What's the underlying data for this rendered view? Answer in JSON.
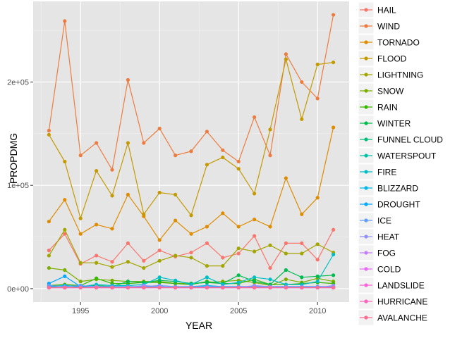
{
  "chart_data": {
    "type": "line",
    "title": "",
    "xlabel": "YEAR",
    "ylabel": "PROPDMG",
    "xlim": [
      1992,
      2012
    ],
    "ylim": [
      -13000,
      278000
    ],
    "x_ticks": [
      1995,
      2000,
      2005,
      2010
    ],
    "x_tick_labels": [
      "1995",
      "2000",
      "2005",
      "2010"
    ],
    "y_ticks": [
      0,
      100000,
      200000
    ],
    "y_tick_labels": [
      "0e+00",
      "1e+05",
      "2e+05"
    ],
    "grid": true,
    "legend_position": "right",
    "x": [
      1993,
      1994,
      1995,
      1996,
      1997,
      1998,
      1999,
      2000,
      2001,
      2002,
      2003,
      2004,
      2005,
      2006,
      2007,
      2008,
      2009,
      2010,
      2011
    ],
    "series": [
      {
        "name": "HAIL",
        "color": "#f8766d",
        "values": [
          37000,
          53000,
          24000,
          32000,
          26000,
          44000,
          27000,
          37000,
          31000,
          35000,
          44000,
          30000,
          34000,
          51000,
          20000,
          44000,
          44000,
          28000,
          57000
        ]
      },
      {
        "name": "WIND",
        "color": "#ec7c3f",
        "values": [
          153000,
          259000,
          129000,
          141000,
          115000,
          202000,
          141000,
          155000,
          129000,
          133000,
          152000,
          134000,
          123000,
          166000,
          129000,
          227000,
          200000,
          184000,
          265000
        ]
      },
      {
        "name": "TORNADO",
        "color": "#de8c00",
        "values": [
          65000,
          86000,
          53000,
          62000,
          58000,
          91000,
          70000,
          47000,
          66000,
          53000,
          60000,
          73000,
          60000,
          67000,
          60000,
          107000,
          72000,
          88000,
          156000
        ]
      },
      {
        "name": "FLOOD",
        "color": "#c49a00",
        "values": [
          149000,
          123000,
          68000,
          114000,
          90000,
          141000,
          72000,
          93000,
          91000,
          71000,
          120000,
          127000,
          116000,
          92000,
          154000,
          222000,
          164000,
          217000,
          219000
        ]
      },
      {
        "name": "LIGHTNING",
        "color": "#a3a500",
        "values": [
          32000,
          57000,
          25000,
          25000,
          21000,
          26000,
          20000,
          27000,
          32000,
          30000,
          22000,
          22000,
          39000,
          36000,
          42000,
          34000,
          34000,
          43000,
          35000
        ]
      },
      {
        "name": "SNOW",
        "color": "#7cae00",
        "values": [
          20000,
          18000,
          7000,
          9000,
          8000,
          7000,
          7000,
          7000,
          5000,
          5000,
          6000,
          7000,
          8000,
          6000,
          3000,
          9000,
          6000,
          10000,
          7000
        ]
      },
      {
        "name": "RAIN",
        "color": "#39b600",
        "values": [
          3000,
          4000,
          3000,
          10000,
          5000,
          5000,
          6000,
          6000,
          5000,
          4000,
          7000,
          5000,
          5000,
          9000,
          4000,
          4000,
          5000,
          6000,
          5000
        ]
      },
      {
        "name": "WINTER",
        "color": "#00bb4e",
        "values": [
          2000,
          3000,
          2000,
          3000,
          2000,
          7000,
          6000,
          8000,
          7000,
          5000,
          6000,
          5000,
          13000,
          7000,
          4000,
          18000,
          11000,
          12000,
          13000
        ]
      },
      {
        "name": "FUNNEL CLOUD",
        "color": "#00bf7d",
        "values": [
          1000,
          1000,
          1000,
          1000,
          1000,
          1000,
          1000,
          1000,
          1000,
          1000,
          1000,
          1000,
          1000,
          1000,
          1000,
          1000,
          1000,
          1000,
          1000
        ]
      },
      {
        "name": "WATERSPOUT",
        "color": "#00c1a3",
        "values": [
          1000,
          1000,
          1000,
          1000,
          1000,
          2000,
          1000,
          1000,
          1000,
          1000,
          1000,
          1000,
          1000,
          1000,
          1000,
          1000,
          1000,
          1000,
          1000
        ]
      },
      {
        "name": "FIRE",
        "color": "#00bfc4",
        "values": [
          2000,
          1000,
          2000,
          4000,
          3000,
          3000,
          4000,
          11000,
          8000,
          4000,
          11000,
          4000,
          6000,
          11000,
          9000,
          4000,
          4000,
          7000,
          33000
        ]
      },
      {
        "name": "BLIZZARD",
        "color": "#00b8e7",
        "values": [
          2000,
          3000,
          2000,
          1000,
          2000,
          2000,
          2000,
          2000,
          1000,
          2000,
          3000,
          2000,
          2000,
          2000,
          2000,
          2000,
          2000,
          2000,
          2000
        ]
      },
      {
        "name": "DROUGHT",
        "color": "#00a9ff",
        "values": [
          5000,
          12000,
          2000,
          1000,
          1000,
          1000,
          1000,
          1000,
          1000,
          1000,
          1000,
          1000,
          1000,
          1000,
          1000,
          1000,
          1000,
          1000,
          1000
        ]
      },
      {
        "name": "ICE",
        "color": "#619cff",
        "values": [
          3000,
          2000,
          3000,
          2000,
          2000,
          2000,
          2000,
          3000,
          2000,
          2000,
          2000,
          2000,
          2000,
          2000,
          2000,
          2000,
          2000,
          2000,
          2000
        ]
      },
      {
        "name": "HEAT",
        "color": "#9590ff",
        "values": [
          1000,
          1000,
          1000,
          2000,
          1000,
          1000,
          3000,
          2000,
          1000,
          1000,
          1000,
          1000,
          1000,
          3000,
          2000,
          1000,
          1000,
          1000,
          3000
        ]
      },
      {
        "name": "FOG",
        "color": "#c77cff",
        "values": [
          1000,
          1000,
          1000,
          1000,
          1000,
          1000,
          1000,
          1000,
          1000,
          1000,
          1000,
          1000,
          1000,
          1000,
          1000,
          1000,
          1000,
          1000,
          1000
        ]
      },
      {
        "name": "COLD",
        "color": "#e76bf3",
        "values": [
          1000,
          1000,
          1000,
          1000,
          1000,
          1000,
          1000,
          1000,
          1000,
          1000,
          1000,
          1000,
          1000,
          1000,
          1000,
          1000,
          1000,
          1000,
          1000
        ]
      },
      {
        "name": "LANDSLIDE",
        "color": "#fa62db",
        "values": [
          1000,
          1000,
          1000,
          1000,
          1000,
          1000,
          1000,
          1000,
          1000,
          1000,
          1000,
          1000,
          1000,
          1000,
          1000,
          1000,
          1000,
          1000,
          1000
        ]
      },
      {
        "name": "HURRICANE",
        "color": "#ff62bc",
        "values": [
          1000,
          1000,
          1000,
          1000,
          1000,
          1000,
          1000,
          1000,
          1000,
          1000,
          1000,
          1000,
          1000,
          1000,
          1000,
          1000,
          1000,
          1000,
          1000
        ]
      },
      {
        "name": "AVALANCHE",
        "color": "#ff6c91",
        "values": [
          1000,
          1000,
          1000,
          1000,
          1000,
          1000,
          1000,
          1000,
          1000,
          1000,
          1000,
          1000,
          1000,
          1000,
          1000,
          1000,
          1000,
          1000,
          1000
        ]
      }
    ]
  }
}
